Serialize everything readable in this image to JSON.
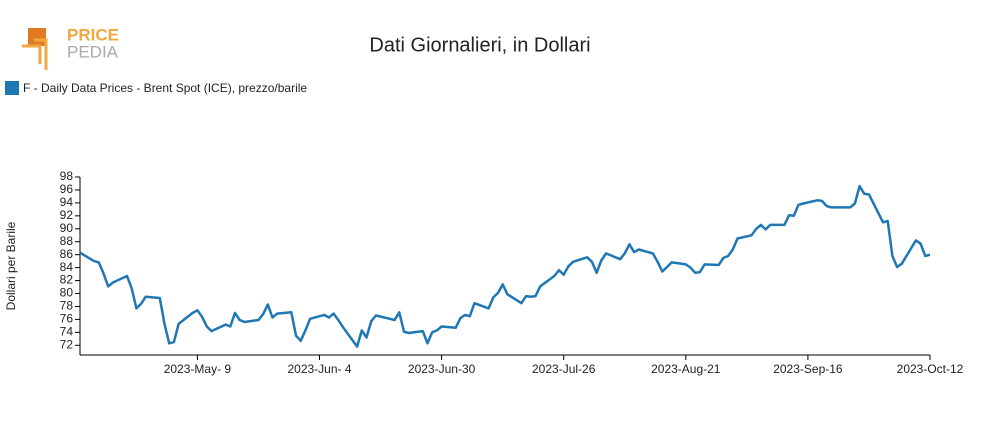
{
  "logo": {
    "top": "PRICE",
    "bottom": "PEDIA"
  },
  "chart_data": {
    "type": "line",
    "title": "Dati Giornalieri, in Dollari",
    "y_label": "Dollari per Barile",
    "x": [
      "2023-04-14",
      "2023-04-17",
      "2023-04-18",
      "2023-04-19",
      "2023-04-20",
      "2023-04-21",
      "2023-04-24",
      "2023-04-25",
      "2023-04-26",
      "2023-04-27",
      "2023-04-28",
      "2023-05-01",
      "2023-05-02",
      "2023-05-03",
      "2023-05-04",
      "2023-05-05",
      "2023-05-08",
      "2023-05-09",
      "2023-05-10",
      "2023-05-11",
      "2023-05-12",
      "2023-05-15",
      "2023-05-16",
      "2023-05-17",
      "2023-05-18",
      "2023-05-19",
      "2023-05-22",
      "2023-05-23",
      "2023-05-24",
      "2023-05-25",
      "2023-05-26",
      "2023-05-29",
      "2023-05-30",
      "2023-05-31",
      "2023-06-01",
      "2023-06-02",
      "2023-06-05",
      "2023-06-06",
      "2023-06-07",
      "2023-06-08",
      "2023-06-09",
      "2023-06-12",
      "2023-06-13",
      "2023-06-14",
      "2023-06-15",
      "2023-06-16",
      "2023-06-19",
      "2023-06-20",
      "2023-06-21",
      "2023-06-22",
      "2023-06-23",
      "2023-06-26",
      "2023-06-27",
      "2023-06-28",
      "2023-06-29",
      "2023-06-30",
      "2023-07-03",
      "2023-07-04",
      "2023-07-05",
      "2023-07-06",
      "2023-07-07",
      "2023-07-10",
      "2023-07-11",
      "2023-07-12",
      "2023-07-13",
      "2023-07-14",
      "2023-07-17",
      "2023-07-18",
      "2023-07-19",
      "2023-07-20",
      "2023-07-21",
      "2023-07-24",
      "2023-07-25",
      "2023-07-26",
      "2023-07-27",
      "2023-07-28",
      "2023-07-31",
      "2023-08-01",
      "2023-08-02",
      "2023-08-03",
      "2023-08-04",
      "2023-08-07",
      "2023-08-08",
      "2023-08-09",
      "2023-08-10",
      "2023-08-11",
      "2023-08-14",
      "2023-08-15",
      "2023-08-16",
      "2023-08-17",
      "2023-08-18",
      "2023-08-21",
      "2023-08-22",
      "2023-08-23",
      "2023-08-24",
      "2023-08-25",
      "2023-08-28",
      "2023-08-29",
      "2023-08-30",
      "2023-08-31",
      "2023-09-01",
      "2023-09-04",
      "2023-09-05",
      "2023-09-06",
      "2023-09-07",
      "2023-09-08",
      "2023-09-11",
      "2023-09-12",
      "2023-09-13",
      "2023-09-14",
      "2023-09-15",
      "2023-09-18",
      "2023-09-19",
      "2023-09-20",
      "2023-09-21",
      "2023-09-22",
      "2023-09-25",
      "2023-09-26",
      "2023-09-27",
      "2023-09-28",
      "2023-09-29",
      "2023-10-02",
      "2023-10-03",
      "2023-10-04",
      "2023-10-05",
      "2023-10-06",
      "2023-10-09",
      "2023-10-10",
      "2023-10-11",
      "2023-10-12"
    ],
    "series": [
      {
        "name": "F - Daily Data Prices - Brent Spot (ICE), prezzo/barile",
        "color": "#1f77b4",
        "values": [
          86.3,
          85.0,
          84.8,
          83.1,
          81.1,
          81.7,
          82.7,
          80.8,
          77.7,
          78.4,
          79.5,
          79.3,
          75.3,
          72.3,
          72.5,
          75.3,
          77.0,
          77.4,
          76.4,
          74.9,
          74.2,
          75.2,
          74.9,
          77.0,
          75.9,
          75.6,
          75.9,
          76.8,
          78.3,
          76.3,
          76.9,
          77.1,
          73.5,
          72.7,
          74.3,
          76.1,
          76.7,
          76.3,
          76.9,
          75.9,
          74.8,
          71.8,
          74.3,
          73.2,
          75.7,
          76.6,
          76.1,
          75.9,
          77.1,
          74.1,
          73.9,
          74.2,
          72.3,
          74.0,
          74.3,
          74.9,
          74.7,
          76.2,
          76.7,
          76.5,
          78.5,
          77.7,
          79.4,
          80.1,
          81.4,
          79.9,
          78.5,
          79.6,
          79.5,
          79.6,
          81.1,
          82.7,
          83.6,
          82.9,
          84.2,
          84.9,
          85.6,
          84.9,
          83.2,
          85.1,
          86.2,
          85.3,
          86.2,
          87.6,
          86.4,
          86.8,
          86.2,
          84.9,
          83.4,
          84.1,
          84.8,
          84.5,
          84.0,
          83.2,
          83.3,
          84.5,
          84.4,
          85.5,
          85.8,
          86.8,
          88.5,
          89.0,
          90.0,
          90.6,
          89.9,
          90.6,
          90.6,
          92.1,
          92.0,
          93.7,
          93.9,
          94.4,
          94.3,
          93.5,
          93.3,
          93.3,
          93.3,
          93.9,
          96.6,
          95.4,
          95.3,
          91.0,
          91.2,
          85.8,
          84.1,
          84.6,
          88.2,
          87.7,
          85.8,
          86.0
        ]
      }
    ],
    "xlim": [
      "2023-04-14",
      "2023-10-12"
    ],
    "xticks": [
      {
        "value": "2023-05-09",
        "label": "2023-May- 9"
      },
      {
        "value": "2023-06-04",
        "label": "2023-Jun- 4"
      },
      {
        "value": "2023-06-30",
        "label": "2023-Jun-30"
      },
      {
        "value": "2023-07-26",
        "label": "2023-Jul-26"
      },
      {
        "value": "2023-08-21",
        "label": "2023-Aug-21"
      },
      {
        "value": "2023-09-16",
        "label": "2023-Sep-16"
      },
      {
        "value": "2023-10-12",
        "label": "2023-Oct-12"
      }
    ],
    "ylim": [
      70.5,
      98
    ],
    "yticks": [
      72,
      74,
      76,
      78,
      80,
      82,
      84,
      86,
      88,
      90,
      92,
      94,
      96,
      98
    ]
  }
}
